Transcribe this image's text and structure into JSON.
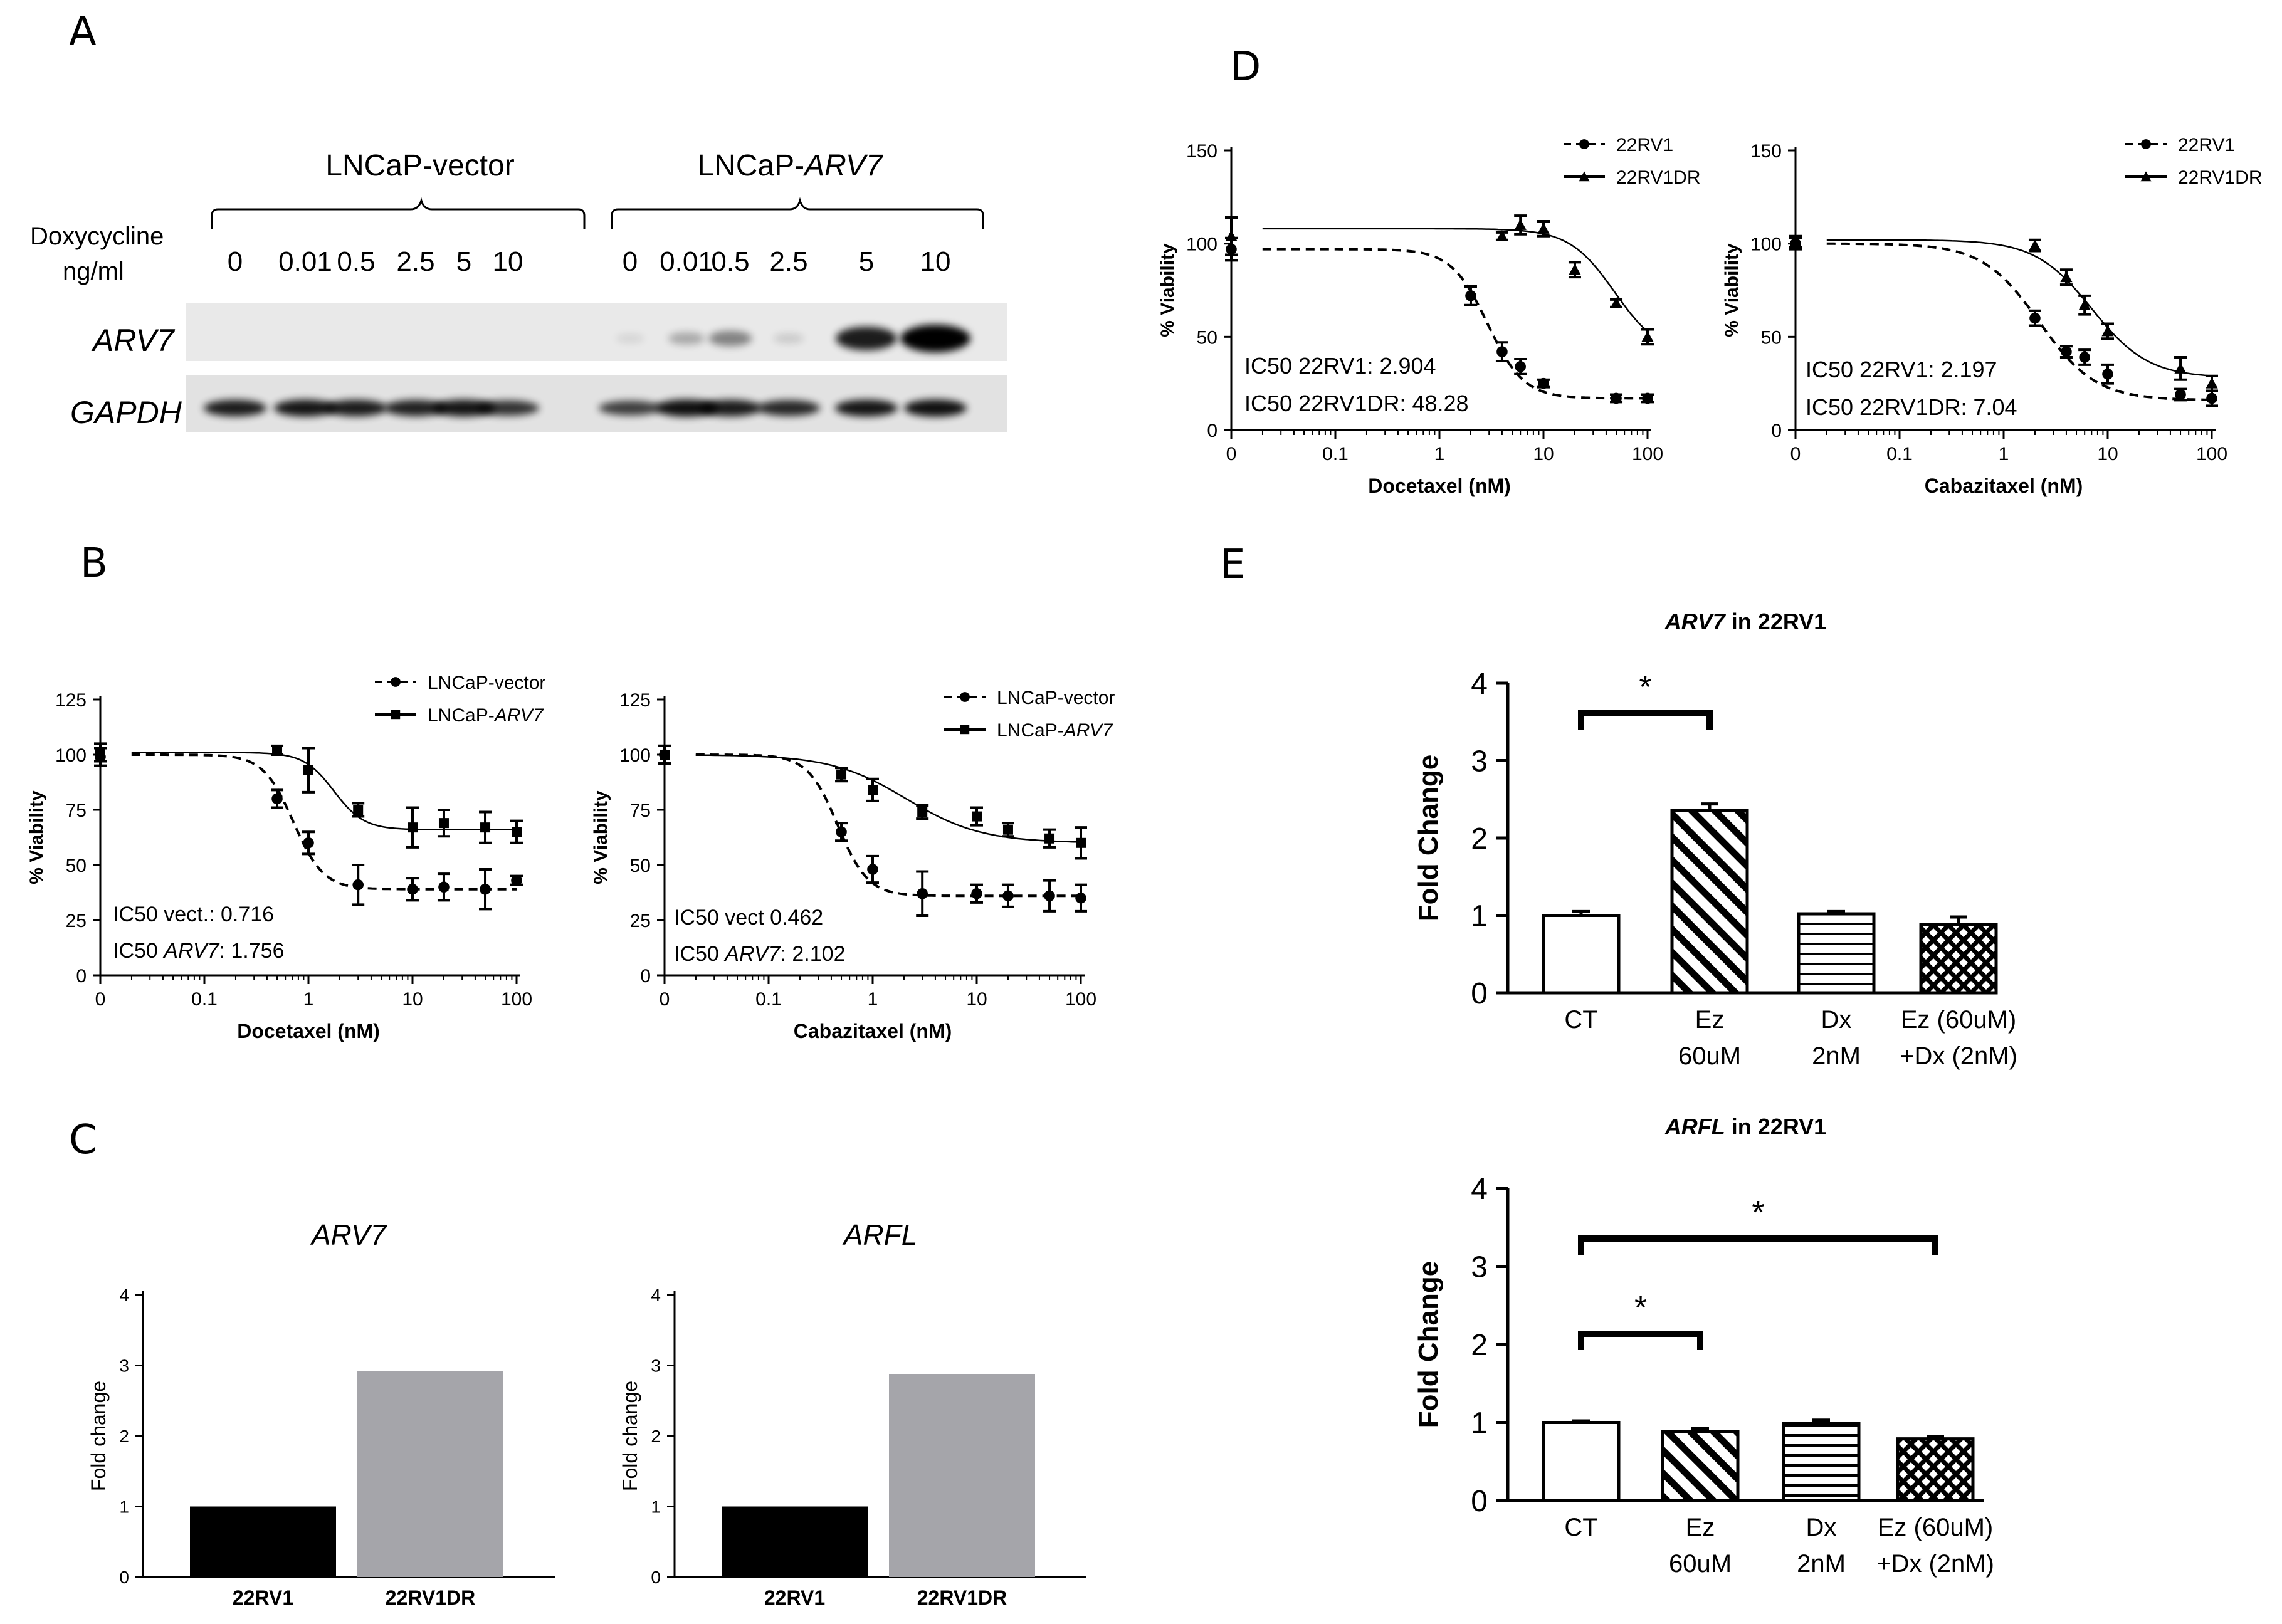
{
  "figure": {
    "panel_letters": {
      "A": "A",
      "B": "B",
      "C": "C",
      "D": "D",
      "E": "E"
    },
    "blot": {
      "group_vector": "LNCaP-vector",
      "group_arv7_prefix": "LNCaP-",
      "group_arv7_gene": "ARV7",
      "dox_label_line1": "Doxycycline",
      "dox_label_line2": "ng/ml",
      "doses_vector": [
        "0",
        "0.01",
        "0.5",
        "2.5",
        "5",
        "10"
      ],
      "doses_arv7": [
        "0",
        "0.01",
        "0.5",
        "2.5",
        "5",
        "10"
      ],
      "row_labels": [
        "ARV7",
        "GAPDH"
      ],
      "arv7_band_intensity": [
        0.02,
        0.02,
        0.02,
        0.02,
        0.02,
        0.02,
        0.08,
        0.25,
        0.4,
        0.12,
        0.8,
        1.0
      ],
      "gapdh_band_intensity": [
        0.85,
        0.9,
        0.85,
        0.8,
        0.9,
        0.65,
        0.55,
        0.95,
        0.85,
        0.75,
        0.9,
        0.95
      ]
    }
  },
  "chart_data": [
    {
      "id": "B-left",
      "type": "line",
      "xscale": "log",
      "xlabel": "Docetaxel (nM)",
      "ylabel": "% Viability",
      "xticks": [
        "0",
        "0.1",
        "1",
        "10",
        "100"
      ],
      "yticks": [
        0,
        25,
        50,
        75,
        100,
        125
      ],
      "ylim": [
        0,
        125
      ],
      "legend": [
        {
          "marker": "circle",
          "style": "dashed",
          "name": "LNCaP-vector"
        },
        {
          "marker": "square",
          "style": "solid",
          "name_prefix": "LNCaP-",
          "name_italic": "ARV7"
        }
      ],
      "annotation_lines": [
        {
          "prefix": "IC50  vect.: ",
          "value": "0.716"
        },
        {
          "prefix": "IC50 ",
          "italic": "ARV7",
          "suffix": ": ",
          "value": "1.756"
        }
      ],
      "series": [
        {
          "name": "LNCaP-vector",
          "marker": "circle",
          "dashed": true,
          "top": 100,
          "bottom": 39,
          "ic50": 0.716,
          "hill": 3,
          "x": [
            0,
            0.5,
            1,
            3,
            10,
            20,
            50,
            100
          ],
          "y": [
            99,
            80,
            60,
            41,
            39,
            40,
            39,
            43
          ],
          "err": [
            4,
            4,
            5,
            9,
            5,
            6,
            9,
            2
          ]
        },
        {
          "name": "LNCaP-ARV7",
          "marker": "square",
          "dashed": false,
          "top": 101,
          "bottom": 66,
          "ic50": 1.756,
          "hill": 3,
          "x": [
            0,
            0.5,
            1,
            3,
            10,
            20,
            50,
            100
          ],
          "y": [
            101,
            102,
            93,
            75,
            67,
            69,
            67,
            65
          ],
          "err": [
            4,
            2,
            10,
            3,
            9,
            6,
            7,
            5
          ]
        }
      ]
    },
    {
      "id": "B-right",
      "type": "line",
      "xscale": "log",
      "xlabel": "Cabazitaxel (nM)",
      "ylabel": "% Viability",
      "xticks": [
        "0",
        "0.1",
        "1",
        "10",
        "100"
      ],
      "yticks": [
        0,
        25,
        50,
        75,
        100,
        125
      ],
      "ylim": [
        0,
        125
      ],
      "legend": [
        {
          "marker": "circle",
          "style": "dashed",
          "name": "LNCaP-vector"
        },
        {
          "marker": "square",
          "style": "solid",
          "name_prefix": "LNCaP-",
          "name_italic": "ARV7"
        }
      ],
      "annotation_lines": [
        {
          "prefix": "IC50 vect ",
          "value": "0.462"
        },
        {
          "prefix": "IC50 ",
          "italic": "ARV7",
          "suffix": ": ",
          "value": "2.102"
        }
      ],
      "series": [
        {
          "name": "LNCaP-vector",
          "marker": "circle",
          "dashed": true,
          "top": 100,
          "bottom": 36,
          "ic50": 0.462,
          "hill": 3,
          "x": [
            0,
            0.5,
            1,
            3,
            10,
            20,
            50,
            100
          ],
          "y": [
            100,
            65,
            48,
            37,
            37,
            36,
            36,
            35
          ],
          "err": [
            4,
            4,
            6,
            10,
            4,
            5,
            7,
            6
          ]
        },
        {
          "name": "LNCaP-ARV7",
          "marker": "square",
          "dashed": false,
          "top": 100,
          "bottom": 60,
          "ic50": 2.102,
          "hill": 1.2,
          "x": [
            0,
            0.5,
            1,
            3,
            10,
            20,
            50,
            100
          ],
          "y": [
            100,
            91,
            84,
            74,
            72,
            66,
            62,
            60
          ],
          "err": [
            4,
            3,
            5,
            3,
            4,
            3,
            4,
            7
          ]
        }
      ]
    },
    {
      "id": "C-left",
      "type": "bar",
      "title": "ARV7",
      "ylabel": "Fold change",
      "categories": [
        "22RV1",
        "22RV1DR"
      ],
      "values": [
        1.0,
        2.92
      ],
      "colors": [
        "#000000",
        "#a5a5aa"
      ],
      "yticks": [
        0,
        1,
        2,
        3,
        4
      ],
      "ylim": [
        0,
        4
      ]
    },
    {
      "id": "C-right",
      "type": "bar",
      "title": "ARFL",
      "ylabel": "Fold change",
      "categories": [
        "22RV1",
        "22RV1DR"
      ],
      "values": [
        1.0,
        2.88
      ],
      "colors": [
        "#000000",
        "#a5a5aa"
      ],
      "yticks": [
        0,
        1,
        2,
        3,
        4
      ],
      "ylim": [
        0,
        4
      ]
    },
    {
      "id": "D-left",
      "type": "line",
      "xscale": "log",
      "xlabel": "Docetaxel (nM)",
      "ylabel": "% Viability",
      "xticks": [
        "0",
        "0.1",
        "1",
        "10",
        "100"
      ],
      "yticks": [
        0,
        50,
        100,
        150
      ],
      "ylim": [
        0,
        150
      ],
      "legend": [
        {
          "marker": "circle",
          "style": "dashed",
          "name": "22RV1"
        },
        {
          "marker": "triangle",
          "style": "solid",
          "name": "22RV1DR"
        }
      ],
      "annotation_lines": [
        {
          "prefix": "IC50  22RV1: ",
          "value": "2.904"
        },
        {
          "prefix": "IC50 22RV1DR: ",
          "value": "48.28"
        }
      ],
      "series": [
        {
          "name": "22RV1",
          "marker": "circle",
          "dashed": true,
          "top": 97,
          "bottom": 17,
          "ic50": 2.904,
          "hill": 2.5,
          "x": [
            0,
            2,
            4,
            6,
            10,
            50,
            100
          ],
          "y": [
            97,
            72,
            42,
            34,
            25,
            17,
            17
          ],
          "err": [
            6,
            5,
            5,
            4,
            2,
            2,
            2
          ]
        },
        {
          "name": "22RV1DR",
          "marker": "triangle",
          "dashed": false,
          "top": 108,
          "bottom": 40,
          "ic50": 48.28,
          "hill": 2,
          "x": [
            0,
            4,
            6,
            10,
            20,
            50,
            100
          ],
          "y": [
            104,
            104,
            110,
            108,
            86,
            68,
            50
          ],
          "err": [
            10,
            2,
            5,
            4,
            4,
            2,
            4
          ]
        }
      ]
    },
    {
      "id": "D-right",
      "type": "line",
      "xscale": "log",
      "xlabel": "Cabazitaxel (nM)",
      "ylabel": "% Viability",
      "xticks": [
        "0",
        "0.1",
        "1",
        "10",
        "100"
      ],
      "yticks": [
        0,
        50,
        100,
        150
      ],
      "ylim": [
        0,
        150
      ],
      "legend": [
        {
          "marker": "circle",
          "style": "dashed",
          "name": "22RV1"
        },
        {
          "marker": "triangle",
          "style": "solid",
          "name": "22RV1DR"
        }
      ],
      "annotation_lines": [
        {
          "prefix": "IC50  22RV1: ",
          "value": "2.197"
        },
        {
          "prefix": "IC50 22RV1DR: ",
          "value": "7.04"
        }
      ],
      "series": [
        {
          "name": "22RV1",
          "marker": "circle",
          "dashed": true,
          "top": 100,
          "bottom": 16,
          "ic50": 2.197,
          "hill": 1.6,
          "x": [
            0,
            2,
            4,
            6,
            10,
            50,
            100
          ],
          "y": [
            100,
            60,
            42,
            39,
            30,
            19,
            17
          ],
          "err": [
            3,
            4,
            3,
            4,
            5,
            3,
            4
          ]
        },
        {
          "name": "22RV1DR",
          "marker": "triangle",
          "dashed": false,
          "top": 102,
          "bottom": 28,
          "ic50": 7.04,
          "hill": 1.6,
          "x": [
            0,
            2,
            4,
            6,
            10,
            50,
            100
          ],
          "y": [
            101,
            99,
            82,
            67,
            53,
            33,
            25
          ],
          "err": [
            3,
            3,
            4,
            5,
            4,
            6,
            4
          ]
        }
      ]
    },
    {
      "id": "E-top",
      "type": "bar",
      "title_italic": "ARV7",
      "title_rest": " in 22RV1",
      "ylabel": "Fold Change",
      "yticks": [
        0,
        1,
        2,
        3,
        4
      ],
      "ylim": [
        0,
        4
      ],
      "categories": [
        [
          "CT"
        ],
        [
          "Ez",
          "60uM"
        ],
        [
          "Dx",
          "2nM"
        ],
        [
          "Ez (60uM)",
          "+Dx (2nM)"
        ]
      ],
      "values": [
        1.0,
        2.36,
        1.02,
        0.88
      ],
      "errors": [
        0.05,
        0.08,
        0.03,
        0.1
      ],
      "patterns": [
        "none",
        "diagonal",
        "horizontal",
        "crosshatch"
      ],
      "significance": [
        {
          "from": 0,
          "to": 1,
          "label": "*"
        }
      ]
    },
    {
      "id": "E-bottom",
      "type": "bar",
      "title_italic": "ARFL",
      "title_rest": " in 22RV1",
      "ylabel": "Fold Change",
      "yticks": [
        0,
        1,
        2,
        3,
        4
      ],
      "ylim": [
        0,
        4
      ],
      "categories": [
        [
          "CT"
        ],
        [
          "Ez",
          "60uM"
        ],
        [
          "Dx",
          "2nM"
        ],
        [
          "Ez (60uM)",
          "+Dx (2nM)"
        ]
      ],
      "values": [
        1.0,
        0.88,
        0.99,
        0.79
      ],
      "errors": [
        0.02,
        0.04,
        0.04,
        0.03
      ],
      "patterns": [
        "none",
        "diagonal",
        "horizontal",
        "crosshatch"
      ],
      "significance": [
        {
          "from": 0,
          "to": 3,
          "label": "*"
        },
        {
          "from": 0,
          "to": 1,
          "label": "*"
        }
      ]
    }
  ]
}
